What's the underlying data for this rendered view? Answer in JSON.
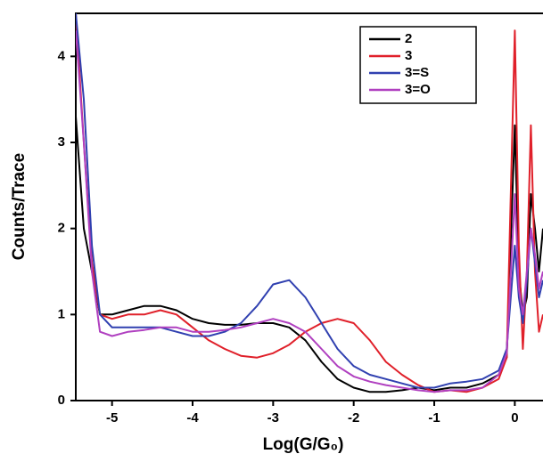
{
  "chart_data": {
    "type": "line",
    "x_label": "Log(G/G₀)",
    "y_label": "Counts/Trace",
    "x": [
      -5.45,
      -5.35,
      -5.25,
      -5.15,
      -5.0,
      -4.8,
      -4.6,
      -4.4,
      -4.2,
      -4.0,
      -3.8,
      -3.6,
      -3.4,
      -3.2,
      -3.0,
      -2.8,
      -2.6,
      -2.4,
      -2.2,
      -2.0,
      -1.8,
      -1.6,
      -1.4,
      -1.2,
      -1.0,
      -0.8,
      -0.6,
      -0.4,
      -0.2,
      -0.1,
      0.0,
      0.05,
      0.1,
      0.15,
      0.2,
      0.25,
      0.3,
      0.35
    ],
    "series": [
      {
        "name": "2",
        "color": "#000000",
        "values": [
          3.3,
          2.0,
          1.5,
          1.0,
          1.0,
          1.05,
          1.1,
          1.1,
          1.05,
          0.95,
          0.9,
          0.88,
          0.88,
          0.9,
          0.9,
          0.85,
          0.7,
          0.45,
          0.25,
          0.15,
          0.1,
          0.1,
          0.12,
          0.15,
          0.12,
          0.15,
          0.15,
          0.2,
          0.3,
          0.5,
          3.2,
          1.5,
          1.0,
          1.2,
          2.4,
          2.0,
          1.5,
          2.0
        ]
      },
      {
        "name": "3",
        "color": "#e0202a",
        "values": [
          4.5,
          3.0,
          1.6,
          1.0,
          0.95,
          1.0,
          1.0,
          1.05,
          1.0,
          0.85,
          0.7,
          0.6,
          0.52,
          0.5,
          0.55,
          0.65,
          0.8,
          0.9,
          0.95,
          0.9,
          0.7,
          0.45,
          0.3,
          0.18,
          0.1,
          0.12,
          0.1,
          0.15,
          0.25,
          0.5,
          4.3,
          1.8,
          0.6,
          1.5,
          3.2,
          1.5,
          0.8,
          1.0
        ]
      },
      {
        "name": "3=S",
        "color": "#3040b0",
        "values": [
          4.5,
          3.5,
          1.8,
          1.0,
          0.85,
          0.85,
          0.85,
          0.85,
          0.8,
          0.75,
          0.75,
          0.8,
          0.9,
          1.1,
          1.35,
          1.4,
          1.2,
          0.9,
          0.6,
          0.4,
          0.3,
          0.25,
          0.2,
          0.15,
          0.15,
          0.2,
          0.22,
          0.25,
          0.35,
          0.6,
          1.8,
          1.2,
          0.9,
          1.4,
          2.0,
          1.6,
          1.2,
          1.4
        ]
      },
      {
        "name": "3=O",
        "color": "#b040c0",
        "values": [
          4.3,
          3.0,
          1.5,
          0.8,
          0.75,
          0.8,
          0.82,
          0.85,
          0.85,
          0.8,
          0.8,
          0.82,
          0.85,
          0.9,
          0.95,
          0.9,
          0.8,
          0.6,
          0.4,
          0.28,
          0.22,
          0.18,
          0.15,
          0.12,
          0.1,
          0.12,
          0.12,
          0.15,
          0.3,
          0.55,
          2.4,
          1.3,
          1.0,
          1.5,
          2.0,
          1.7,
          1.3,
          1.5
        ]
      }
    ],
    "xlim": [
      -5.45,
      0.35
    ],
    "xticks": [
      -5,
      -4,
      -3,
      -2,
      -1,
      0
    ],
    "ylim": [
      0,
      4.5
    ],
    "yticks": [
      0,
      1,
      2,
      3,
      4
    ],
    "grid": false,
    "legend": "upper right"
  }
}
